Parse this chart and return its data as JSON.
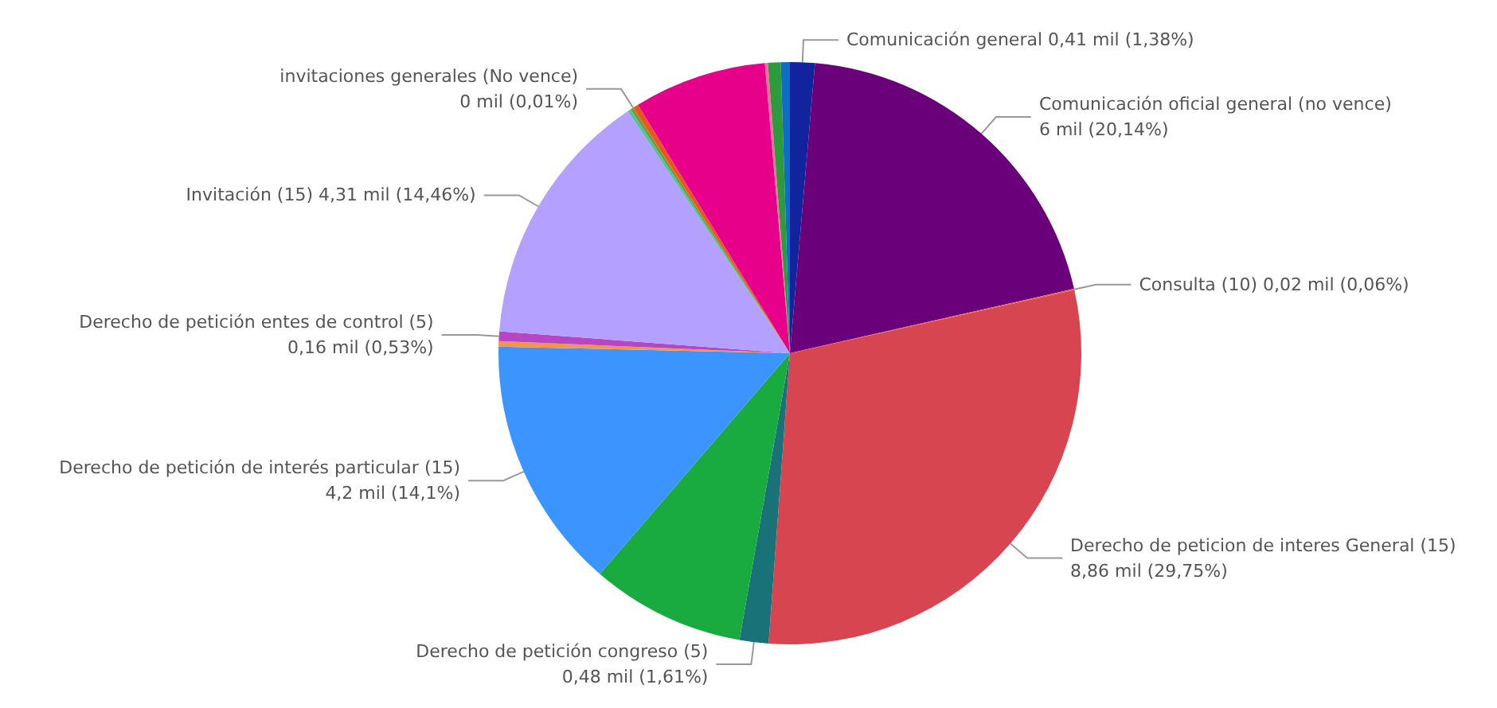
{
  "chart_data": {
    "type": "pie",
    "categories": [
      "Comunicación general",
      "Comunicación oficial general (no vence)",
      "Consulta (10)",
      "Derecho de peticion de interes General (15)",
      "Derecho de petición congreso (5)",
      null,
      "Derecho de petición de interés particular (15)",
      null,
      "Derecho de petición entes de control (5)",
      "Invitación (15)",
      null,
      null,
      "invitaciones generales (No vence)",
      null,
      null,
      null,
      null,
      null
    ],
    "values": [
      0.41,
      6,
      0.02,
      8.86,
      0.48,
      2.55,
      4.2,
      0.09,
      0.16,
      4.31,
      0.05,
      0.05,
      0.003,
      0.09,
      2.2,
      0.05,
      0.21,
      0.15
    ],
    "value_labels": [
      "0,41 mil (1,38%)",
      "6 mil (20,14%)",
      "0,02 mil (0,06%)",
      "8,86 mil (29,75%)",
      "0,48 mil (1,61%)",
      null,
      "4,2 mil (14,1%)",
      null,
      "0,16 mil (0,53%)",
      "4,31 mil (14,46%)",
      null,
      null,
      "0 mil (0,01%)",
      null,
      null,
      null,
      null,
      null
    ],
    "colors": [
      "#12239e",
      "#6b007b",
      "#e66c37",
      "#d64550",
      "#197278",
      "#1aab40",
      "#3c95ff",
      "#f0954a",
      "#b845c4",
      "#b3a0ff",
      "#4fc2a4",
      "#6b9e3c",
      "#c0392b",
      "#e8581a",
      "#e6008a",
      "#f26d9c",
      "#2d9a3c",
      "#0f6dc6"
    ],
    "legend": false
  }
}
